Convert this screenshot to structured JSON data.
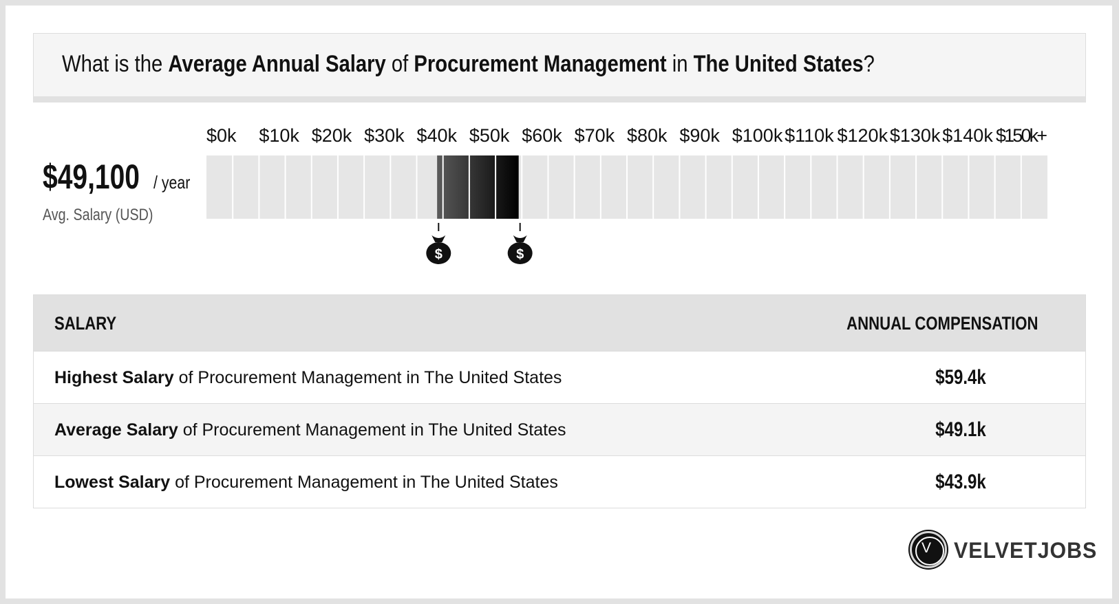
{
  "header": {
    "title_prefix": "What is the",
    "title_metric": "Average Annual Salary",
    "title_of": "of",
    "title_role": "Procurement Management",
    "title_in": "in",
    "title_location": "The United States",
    "title_suffix": "?"
  },
  "summary": {
    "avg_salary": "$49,100",
    "period": "/ year",
    "caption": "Avg. Salary (USD)"
  },
  "chart_data": {
    "type": "bar",
    "xlim": [
      0,
      160000
    ],
    "ticks": [
      {
        "value": 0,
        "label": "$0k"
      },
      {
        "value": 10000,
        "label": "$10k"
      },
      {
        "value": 20000,
        "label": "$20k"
      },
      {
        "value": 30000,
        "label": "$30k"
      },
      {
        "value": 40000,
        "label": "$40k"
      },
      {
        "value": 50000,
        "label": "$50k"
      },
      {
        "value": 60000,
        "label": "$60k"
      },
      {
        "value": 70000,
        "label": "$70k"
      },
      {
        "value": 80000,
        "label": "$80k"
      },
      {
        "value": 90000,
        "label": "$90k"
      },
      {
        "value": 100000,
        "label": "$100k"
      },
      {
        "value": 110000,
        "label": "$110k"
      },
      {
        "value": 120000,
        "label": "$120k"
      },
      {
        "value": 130000,
        "label": "$130k"
      },
      {
        "value": 140000,
        "label": "$140k"
      },
      {
        "value": 150000,
        "label": "$150k+"
      }
    ],
    "segment_step": 5000,
    "range": {
      "low": 43900,
      "average": 49100,
      "high": 59400
    },
    "markers": [
      {
        "name": "lowest",
        "value": 43900,
        "icon": "money-bag-icon"
      },
      {
        "name": "highest",
        "value": 59400,
        "icon": "money-bag-icon"
      }
    ],
    "colors": {
      "track": "#e6e6e6",
      "divider": "#ffffff",
      "fill_start": "#5a5a5a",
      "fill_end": "#000000",
      "marker": "#111111"
    }
  },
  "table": {
    "header_salary": "SALARY",
    "header_comp": "ANNUAL COMPENSATION",
    "rows": [
      {
        "bold": "Highest Salary",
        "rest": " of Procurement Management in The United States",
        "value": "$59.4k"
      },
      {
        "bold": "Average Salary",
        "rest": " of Procurement Management in The United States",
        "value": "$49.1k"
      },
      {
        "bold": "Lowest Salary",
        "rest": " of Procurement Management in The United States",
        "value": "$43.9k"
      }
    ]
  },
  "brand": {
    "logo_letter": "V",
    "name": "VELVETJOBS"
  }
}
